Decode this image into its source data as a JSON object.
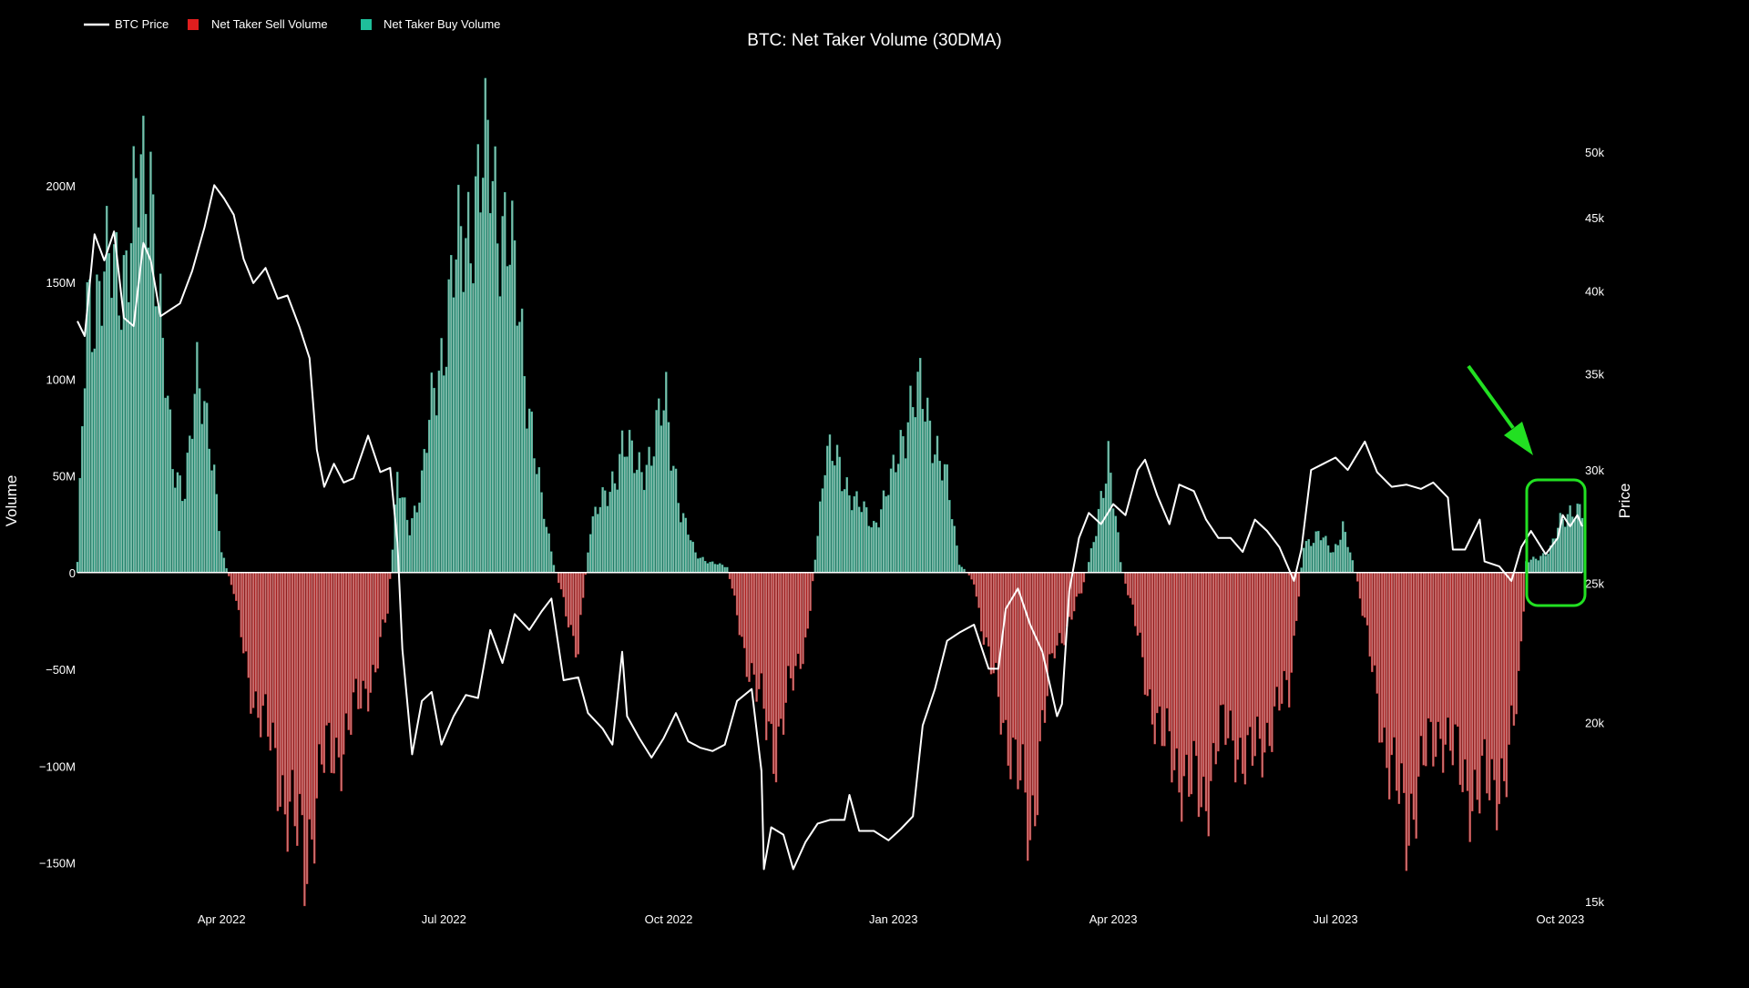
{
  "chart_data": {
    "type": "bar",
    "title": "BTC: Net Taker Volume (30DMA)",
    "ylabel": "Volume",
    "y2label": "Price",
    "legend": [
      {
        "name": "BTC Price",
        "color": "#ffffff",
        "marker": "line"
      },
      {
        "name": "Net Taker Sell Volume",
        "color": "#e01e1e",
        "marker": "square"
      },
      {
        "name": "Net Taker Buy Volume",
        "color": "#1fbf9a",
        "marker": "square"
      }
    ],
    "legend_position": "top-left",
    "x_range": [
      "2022-02-01",
      "2023-10-10"
    ],
    "x_ticks": [
      {
        "date": "2022-04-01",
        "label": "Apr 2022"
      },
      {
        "date": "2022-07-01",
        "label": "Jul 2022"
      },
      {
        "date": "2022-10-01",
        "label": "Oct 2022"
      },
      {
        "date": "2023-01-01",
        "label": "Jan 2023"
      },
      {
        "date": "2023-04-01",
        "label": "Apr 2023"
      },
      {
        "date": "2023-07-01",
        "label": "Jul 2023"
      },
      {
        "date": "2023-10-01",
        "label": "Oct 2023"
      }
    ],
    "y_range": [
      -170000000,
      230000000
    ],
    "y_ticks": [
      {
        "value": 200000000,
        "label": "200M"
      },
      {
        "value": 150000000,
        "label": "150M"
      },
      {
        "value": 100000000,
        "label": "100M"
      },
      {
        "value": 50000000,
        "label": "50M"
      },
      {
        "value": 0,
        "label": "0"
      },
      {
        "value": -50000000,
        "label": "−50M"
      },
      {
        "value": -100000000,
        "label": "−100M"
      },
      {
        "value": -150000000,
        "label": "−150M"
      }
    ],
    "y2_scale": "log",
    "y2_range": [
      15000,
      52000
    ],
    "y2_ticks": [
      {
        "value": 50000,
        "label": "50k"
      },
      {
        "value": 45000,
        "label": "45k"
      },
      {
        "value": 40000,
        "label": "40k"
      },
      {
        "value": 35000,
        "label": "35k"
      },
      {
        "value": 30000,
        "label": "30k"
      },
      {
        "value": 25000,
        "label": "25k"
      },
      {
        "value": 20000,
        "label": "20k"
      },
      {
        "value": 15000,
        "label": "15k"
      }
    ],
    "grid": false,
    "volume_profile": [
      [
        "2022-02-01",
        5
      ],
      [
        "2022-02-05",
        140
      ],
      [
        "2022-02-12",
        150
      ],
      [
        "2022-02-20",
        160
      ],
      [
        "2022-02-27",
        195
      ],
      [
        "2022-03-03",
        215
      ],
      [
        "2022-03-08",
        110
      ],
      [
        "2022-03-12",
        55
      ],
      [
        "2022-03-17",
        45
      ],
      [
        "2022-03-22",
        95
      ],
      [
        "2022-03-27",
        80
      ],
      [
        "2022-04-01",
        10
      ],
      [
        "2022-04-06",
        -10
      ],
      [
        "2022-04-12",
        -55
      ],
      [
        "2022-04-20",
        -85
      ],
      [
        "2022-04-28",
        -120
      ],
      [
        "2022-05-05",
        -150
      ],
      [
        "2022-05-12",
        -100
      ],
      [
        "2022-05-20",
        -90
      ],
      [
        "2022-05-28",
        -65
      ],
      [
        "2022-06-03",
        -50
      ],
      [
        "2022-06-08",
        -20
      ],
      [
        "2022-06-12",
        45
      ],
      [
        "2022-06-17",
        25
      ],
      [
        "2022-06-22",
        45
      ],
      [
        "2022-06-27",
        95
      ],
      [
        "2022-07-05",
        150
      ],
      [
        "2022-07-12",
        190
      ],
      [
        "2022-07-20",
        210
      ],
      [
        "2022-07-27",
        175
      ],
      [
        "2022-08-03",
        110
      ],
      [
        "2022-08-10",
        35
      ],
      [
        "2022-08-15",
        5
      ],
      [
        "2022-08-20",
        -20
      ],
      [
        "2022-08-25",
        -40
      ],
      [
        "2022-08-30",
        25
      ],
      [
        "2022-09-06",
        40
      ],
      [
        "2022-09-12",
        65
      ],
      [
        "2022-09-18",
        55
      ],
      [
        "2022-09-24",
        60
      ],
      [
        "2022-09-30",
        90
      ],
      [
        "2022-10-06",
        30
      ],
      [
        "2022-10-12",
        10
      ],
      [
        "2022-10-18",
        5
      ],
      [
        "2022-10-25",
        3
      ],
      [
        "2022-11-01",
        -40
      ],
      [
        "2022-11-08",
        -70
      ],
      [
        "2022-11-14",
        -90
      ],
      [
        "2022-11-20",
        -60
      ],
      [
        "2022-11-27",
        -30
      ],
      [
        "2022-12-04",
        60
      ],
      [
        "2022-12-10",
        55
      ],
      [
        "2022-12-17",
        35
      ],
      [
        "2022-12-24",
        25
      ],
      [
        "2022-12-31",
        45
      ],
      [
        "2023-01-07",
        85
      ],
      [
        "2023-01-12",
        90
      ],
      [
        "2023-01-17",
        75
      ],
      [
        "2023-01-23",
        45
      ],
      [
        "2023-01-28",
        5
      ],
      [
        "2023-02-03",
        -5
      ],
      [
        "2023-02-08",
        -40
      ],
      [
        "2023-02-14",
        -70
      ],
      [
        "2023-02-20",
        -100
      ],
      [
        "2023-02-26",
        -135
      ],
      [
        "2023-03-03",
        -80
      ],
      [
        "2023-03-08",
        -40
      ],
      [
        "2023-03-14",
        -25
      ],
      [
        "2023-03-19",
        -10
      ],
      [
        "2023-03-25",
        20
      ],
      [
        "2023-03-30",
        65
      ],
      [
        "2023-04-04",
        5
      ],
      [
        "2023-04-09",
        -20
      ],
      [
        "2023-04-15",
        -60
      ],
      [
        "2023-04-22",
        -90
      ],
      [
        "2023-04-30",
        -105
      ],
      [
        "2023-05-08",
        -120
      ],
      [
        "2023-05-14",
        -85
      ],
      [
        "2023-05-20",
        -85
      ],
      [
        "2023-05-27",
        -100
      ],
      [
        "2023-06-04",
        -80
      ],
      [
        "2023-06-12",
        -60
      ],
      [
        "2023-06-18",
        15
      ],
      [
        "2023-06-24",
        20
      ],
      [
        "2023-06-30",
        10
      ],
      [
        "2023-07-04",
        25
      ],
      [
        "2023-07-10",
        -5
      ],
      [
        "2023-07-16",
        -50
      ],
      [
        "2023-07-23",
        -100
      ],
      [
        "2023-07-30",
        -130
      ],
      [
        "2023-08-06",
        -100
      ],
      [
        "2023-08-13",
        -80
      ],
      [
        "2023-08-20",
        -100
      ],
      [
        "2023-08-27",
        -115
      ],
      [
        "2023-09-03",
        -110
      ],
      [
        "2023-09-10",
        -100
      ],
      [
        "2023-09-14",
        -60
      ],
      [
        "2023-09-17",
        5
      ],
      [
        "2023-09-22",
        8
      ],
      [
        "2023-09-27",
        12
      ],
      [
        "2023-10-01",
        25
      ],
      [
        "2023-10-06",
        35
      ],
      [
        "2023-10-10",
        30
      ]
    ],
    "volume_unit": "M",
    "price_series": [
      [
        "2022-02-01",
        38100
      ],
      [
        "2022-02-04",
        37200
      ],
      [
        "2022-02-08",
        43800
      ],
      [
        "2022-02-12",
        42000
      ],
      [
        "2022-02-16",
        44000
      ],
      [
        "2022-02-20",
        38300
      ],
      [
        "2022-02-24",
        37800
      ],
      [
        "2022-02-28",
        43200
      ],
      [
        "2022-03-03",
        42000
      ],
      [
        "2022-03-07",
        38400
      ],
      [
        "2022-03-11",
        38800
      ],
      [
        "2022-03-15",
        39200
      ],
      [
        "2022-03-20",
        41300
      ],
      [
        "2022-03-25",
        44300
      ],
      [
        "2022-03-29",
        47400
      ],
      [
        "2022-04-02",
        46400
      ],
      [
        "2022-04-06",
        45200
      ],
      [
        "2022-04-10",
        42100
      ],
      [
        "2022-04-14",
        40500
      ],
      [
        "2022-04-19",
        41500
      ],
      [
        "2022-04-24",
        39500
      ],
      [
        "2022-04-28",
        39700
      ],
      [
        "2022-05-03",
        37700
      ],
      [
        "2022-05-07",
        35900
      ],
      [
        "2022-05-10",
        31000
      ],
      [
        "2022-05-13",
        29200
      ],
      [
        "2022-05-17",
        30300
      ],
      [
        "2022-05-21",
        29400
      ],
      [
        "2022-05-25",
        29600
      ],
      [
        "2022-05-31",
        31700
      ],
      [
        "2022-06-05",
        29900
      ],
      [
        "2022-06-09",
        30100
      ],
      [
        "2022-06-12",
        26700
      ],
      [
        "2022-06-14",
        22500
      ],
      [
        "2022-06-18",
        19000
      ],
      [
        "2022-06-22",
        20700
      ],
      [
        "2022-06-26",
        21000
      ],
      [
        "2022-06-30",
        19300
      ],
      [
        "2022-07-05",
        20200
      ],
      [
        "2022-07-10",
        20900
      ],
      [
        "2022-07-15",
        20800
      ],
      [
        "2022-07-20",
        23200
      ],
      [
        "2022-07-25",
        22000
      ],
      [
        "2022-07-30",
        23800
      ],
      [
        "2022-08-05",
        23200
      ],
      [
        "2022-08-10",
        23900
      ],
      [
        "2022-08-14",
        24400
      ],
      [
        "2022-08-19",
        21400
      ],
      [
        "2022-08-25",
        21500
      ],
      [
        "2022-08-29",
        20300
      ],
      [
        "2022-09-04",
        19800
      ],
      [
        "2022-09-08",
        19300
      ],
      [
        "2022-09-12",
        22400
      ],
      [
        "2022-09-14",
        20200
      ],
      [
        "2022-09-19",
        19500
      ],
      [
        "2022-09-24",
        18900
      ],
      [
        "2022-09-29",
        19500
      ],
      [
        "2022-10-04",
        20300
      ],
      [
        "2022-10-09",
        19400
      ],
      [
        "2022-10-14",
        19200
      ],
      [
        "2022-10-19",
        19100
      ],
      [
        "2022-10-24",
        19300
      ],
      [
        "2022-10-29",
        20700
      ],
      [
        "2022-11-04",
        21100
      ],
      [
        "2022-11-08",
        18500
      ],
      [
        "2022-11-09",
        15800
      ],
      [
        "2022-11-12",
        16900
      ],
      [
        "2022-11-17",
        16700
      ],
      [
        "2022-11-21",
        15800
      ],
      [
        "2022-11-26",
        16500
      ],
      [
        "2022-12-01",
        17000
      ],
      [
        "2022-12-06",
        17100
      ],
      [
        "2022-12-12",
        17100
      ],
      [
        "2022-12-14",
        17800
      ],
      [
        "2022-12-18",
        16800
      ],
      [
        "2022-12-24",
        16800
      ],
      [
        "2022-12-30",
        16550
      ],
      [
        "2023-01-04",
        16850
      ],
      [
        "2023-01-09",
        17200
      ],
      [
        "2023-01-13",
        19900
      ],
      [
        "2023-01-18",
        21100
      ],
      [
        "2023-01-23",
        22800
      ],
      [
        "2023-01-28",
        23100
      ],
      [
        "2023-02-03",
        23400
      ],
      [
        "2023-02-09",
        21800
      ],
      [
        "2023-02-13",
        21800
      ],
      [
        "2023-02-16",
        24000
      ],
      [
        "2023-02-21",
        24800
      ],
      [
        "2023-02-26",
        23400
      ],
      [
        "2023-03-03",
        22400
      ],
      [
        "2023-03-09",
        20200
      ],
      [
        "2023-03-11",
        20600
      ],
      [
        "2023-03-14",
        24700
      ],
      [
        "2023-03-18",
        26900
      ],
      [
        "2023-03-22",
        28000
      ],
      [
        "2023-03-27",
        27500
      ],
      [
        "2023-04-01",
        28400
      ],
      [
        "2023-04-06",
        27900
      ],
      [
        "2023-04-11",
        30000
      ],
      [
        "2023-04-14",
        30500
      ],
      [
        "2023-04-19",
        28800
      ],
      [
        "2023-04-24",
        27500
      ],
      [
        "2023-04-28",
        29300
      ],
      [
        "2023-05-04",
        29000
      ],
      [
        "2023-05-09",
        27700
      ],
      [
        "2023-05-14",
        26900
      ],
      [
        "2023-05-19",
        26900
      ],
      [
        "2023-05-24",
        26300
      ],
      [
        "2023-05-29",
        27700
      ],
      [
        "2023-06-03",
        27200
      ],
      [
        "2023-06-08",
        26500
      ],
      [
        "2023-06-14",
        25100
      ],
      [
        "2023-06-17",
        26400
      ],
      [
        "2023-06-21",
        30000
      ],
      [
        "2023-06-26",
        30300
      ],
      [
        "2023-07-01",
        30600
      ],
      [
        "2023-07-06",
        30000
      ],
      [
        "2023-07-13",
        31400
      ],
      [
        "2023-07-18",
        29900
      ],
      [
        "2023-07-24",
        29200
      ],
      [
        "2023-07-30",
        29300
      ],
      [
        "2023-08-05",
        29100
      ],
      [
        "2023-08-10",
        29400
      ],
      [
        "2023-08-16",
        28700
      ],
      [
        "2023-08-18",
        26400
      ],
      [
        "2023-08-23",
        26400
      ],
      [
        "2023-08-29",
        27700
      ],
      [
        "2023-08-31",
        25900
      ],
      [
        "2023-09-06",
        25700
      ],
      [
        "2023-09-11",
        25100
      ],
      [
        "2023-09-15",
        26500
      ],
      [
        "2023-09-19",
        27200
      ],
      [
        "2023-09-25",
        26200
      ],
      [
        "2023-09-30",
        26900
      ],
      [
        "2023-10-02",
        27900
      ],
      [
        "2023-10-05",
        27400
      ],
      [
        "2023-10-08",
        27900
      ],
      [
        "2023-10-10",
        27400
      ]
    ]
  }
}
